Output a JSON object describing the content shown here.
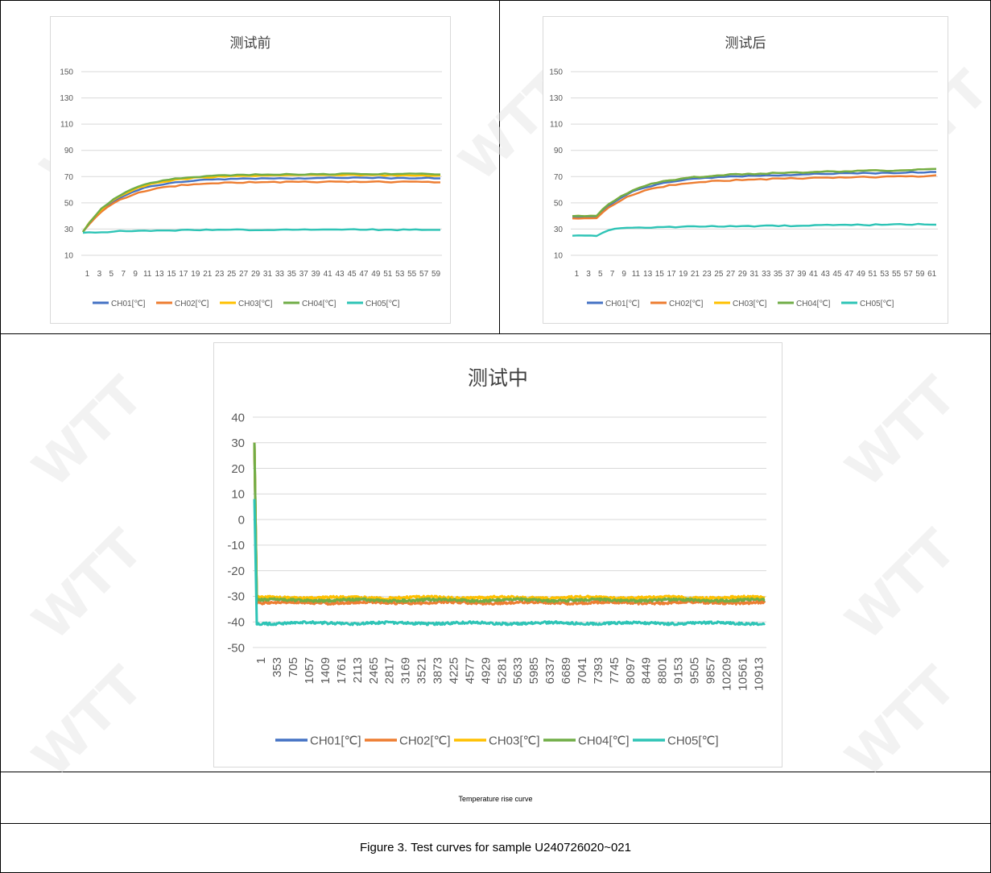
{
  "watermark": "WTT",
  "captions": {
    "rise_curve": "Temperature rise curve",
    "figure": "Figure 3. Test curves for sample U240726020~021"
  },
  "colors": {
    "CH01": "#4472c4",
    "CH02": "#ed7d31",
    "CH03": "#ffc000",
    "CH04": "#70ad47",
    "CH05": "#2ec4b6"
  },
  "chart_data": [
    {
      "id": "before",
      "type": "line",
      "title": "测试前",
      "ylim": [
        10,
        150
      ],
      "yticks": [
        10,
        30,
        50,
        70,
        90,
        110,
        130,
        150
      ],
      "x_tick_labels": [
        "1",
        "3",
        "5",
        "7",
        "9",
        "11",
        "13",
        "15",
        "17",
        "19",
        "21",
        "23",
        "25",
        "27",
        "29",
        "31",
        "33",
        "35",
        "37",
        "39",
        "41",
        "43",
        "45",
        "47",
        "49",
        "51",
        "53",
        "55",
        "57",
        "59"
      ],
      "n_points": 59,
      "grid": true,
      "legend": "bottom",
      "series": [
        {
          "name": "CH01[℃]",
          "color_key": "CH01",
          "start": 28,
          "plateau": 69,
          "tau": 6,
          "drift": 0
        },
        {
          "name": "CH02[℃]",
          "color_key": "CH02",
          "start": 28,
          "plateau": 66,
          "tau": 6,
          "drift": 0
        },
        {
          "name": "CH03[℃]",
          "color_key": "CH03",
          "start": 28,
          "plateau": 71,
          "tau": 6,
          "drift": 0
        },
        {
          "name": "CH04[℃]",
          "color_key": "CH04",
          "start": 28,
          "plateau": 72,
          "tau": 6,
          "drift": 0
        },
        {
          "name": "CH05[℃]",
          "color_key": "CH05",
          "start": 27,
          "plateau": 29.5,
          "tau": 8,
          "drift": 0
        }
      ]
    },
    {
      "id": "after",
      "type": "line",
      "title": "测试后",
      "ylim": [
        10,
        150
      ],
      "yticks": [
        10,
        30,
        50,
        70,
        90,
        110,
        130,
        150
      ],
      "x_tick_labels": [
        "1",
        "3",
        "5",
        "7",
        "9",
        "11",
        "13",
        "15",
        "17",
        "19",
        "21",
        "23",
        "25",
        "27",
        "29",
        "31",
        "33",
        "35",
        "37",
        "39",
        "41",
        "43",
        "45",
        "47",
        "49",
        "51",
        "53",
        "55",
        "57",
        "59",
        "61"
      ],
      "n_points": 61,
      "grid": true,
      "legend": "bottom",
      "series": [
        {
          "name": "CH01[℃]",
          "color_key": "CH01",
          "start": 39,
          "plateau": 69,
          "tau": 6,
          "drift": 5,
          "flat_until": 4
        },
        {
          "name": "CH02[℃]",
          "color_key": "CH02",
          "start": 38,
          "plateau": 66,
          "tau": 6,
          "drift": 5,
          "flat_until": 4
        },
        {
          "name": "CH03[℃]",
          "color_key": "CH03",
          "start": 40,
          "plateau": 70,
          "tau": 6,
          "drift": 6,
          "flat_until": 4
        },
        {
          "name": "CH04[℃]",
          "color_key": "CH04",
          "start": 40,
          "plateau": 70,
          "tau": 6,
          "drift": 6,
          "flat_until": 4
        },
        {
          "name": "CH05[℃]",
          "color_key": "CH05",
          "start": 25,
          "plateau": 31,
          "tau": 2,
          "drift": 3,
          "flat_until": 4
        }
      ]
    },
    {
      "id": "during",
      "type": "line",
      "title": "测试中",
      "ylim": [
        -50,
        40
      ],
      "yticks": [
        -50,
        -40,
        -30,
        -20,
        -10,
        0,
        10,
        20,
        30,
        40
      ],
      "x_tick_labels": [
        "1",
        "353",
        "705",
        "1057",
        "1409",
        "1761",
        "2113",
        "2465",
        "2817",
        "3169",
        "3521",
        "3873",
        "4225",
        "4577",
        "4929",
        "5281",
        "5633",
        "5985",
        "6337",
        "6689",
        "7041",
        "7393",
        "7745",
        "8097",
        "8449",
        "8801",
        "9153",
        "9505",
        "9857",
        "10209",
        "10561",
        "10913"
      ],
      "n_points": 11200,
      "grid": true,
      "legend": "bottom",
      "series": [
        {
          "name": "CH01[℃]",
          "color_key": "CH01",
          "start": 30,
          "plateau": -31.5
        },
        {
          "name": "CH02[℃]",
          "color_key": "CH02",
          "start": 30,
          "plateau": -32.5
        },
        {
          "name": "CH03[℃]",
          "color_key": "CH03",
          "start": 30,
          "plateau": -30.5
        },
        {
          "name": "CH04[℃]",
          "color_key": "CH04",
          "start": 30,
          "plateau": -31.5
        },
        {
          "name": "CH05[℃]",
          "color_key": "CH05",
          "start": 8,
          "plateau": -40.5
        }
      ]
    }
  ]
}
